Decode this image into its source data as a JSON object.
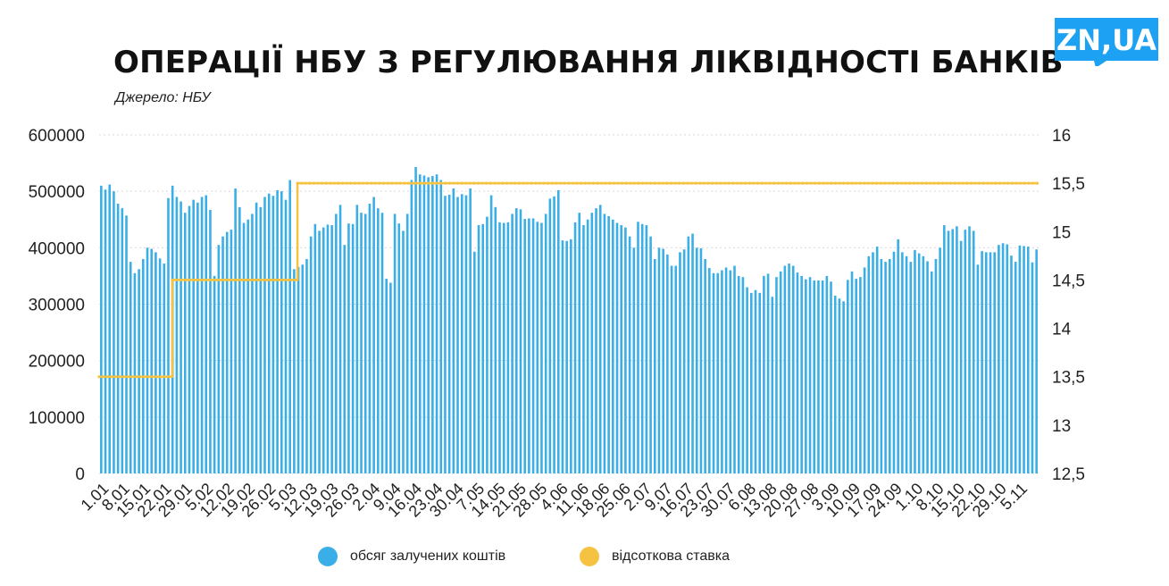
{
  "header": {
    "title": "ОПЕРАЦІЇ НБУ З РЕГУЛЮВАННЯ ЛІКВІДНОСТІ БАНКІВ",
    "source": "Джерело: НБУ",
    "logo_text": "ZN,UA"
  },
  "colors": {
    "bars": "#3aaee6",
    "rate": "#f5c242",
    "logo_bg": "#1da1f2",
    "grid": "#d9d9d9"
  },
  "legend": [
    {
      "label": "обсяг залучених коштів",
      "color": "#3aaee6"
    },
    {
      "label": "відсоткова ставка",
      "color": "#f5c242"
    }
  ],
  "chart_data": {
    "type": "bar",
    "grid": true,
    "legend_position": "bottom",
    "y_left": {
      "ticks": [
        "0",
        "100000",
        "200000",
        "300000",
        "400000",
        "500000",
        "600000"
      ],
      "lim": [
        0,
        600000
      ]
    },
    "y_right": {
      "ticks": [
        "12,5",
        "13",
        "13,5",
        "14",
        "14,5",
        "15",
        "15,5",
        "16"
      ],
      "lim": [
        12.5,
        16
      ]
    },
    "x_tick_labels": [
      "1.01",
      "8.01",
      "15.01",
      "22.01",
      "29.01",
      "5.02",
      "12.02",
      "19.02",
      "26.02",
      "5.03",
      "12.03",
      "19.03",
      "26.03",
      "2.04",
      "9.04",
      "16.04",
      "23.04",
      "30.04",
      "7.05",
      "14.05",
      "21.05",
      "28.05",
      "4.06",
      "11.06",
      "18.06",
      "25.06",
      "2.07",
      "9.07",
      "16.07",
      "23.07",
      "30.07",
      "6.08",
      "13.08",
      "20.08",
      "27.08",
      "3.09",
      "10.09",
      "17.09",
      "24.09",
      "1.10",
      "8.10",
      "15.10",
      "22.10",
      "29.10",
      "5.11"
    ],
    "series": [
      {
        "name": "обсяг залучених коштів",
        "type": "bar",
        "axis": "left",
        "values": [
          510000,
          503000,
          512000,
          500000,
          478000,
          470000,
          457000,
          375000,
          355000,
          362000,
          380000,
          400000,
          398000,
          392000,
          381000,
          372000,
          488000,
          510000,
          490000,
          482000,
          462000,
          474000,
          485000,
          480000,
          490000,
          493000,
          467000,
          350000,
          405000,
          420000,
          428000,
          432000,
          505000,
          472000,
          444000,
          450000,
          460000,
          480000,
          472000,
          490000,
          496000,
          492000,
          502000,
          500000,
          485000,
          520000,
          362000,
          366000,
          370000,
          380000,
          420000,
          442000,
          430000,
          436000,
          441000,
          440000,
          460000,
          476000,
          405000,
          443000,
          442000,
          476000,
          462000,
          460000,
          478000,
          490000,
          470000,
          462000,
          345000,
          338000,
          460000,
          443000,
          430000,
          460000,
          520000,
          543000,
          530000,
          528000,
          525000,
          527000,
          530000,
          520000,
          492000,
          494000,
          505000,
          490000,
          495000,
          493000,
          505000,
          393000,
          440000,
          442000,
          455000,
          493000,
          472000,
          445000,
          444000,
          445000,
          460000,
          470000,
          468000,
          451000,
          452000,
          452000,
          446000,
          444000,
          460000,
          487000,
          491000,
          502000,
          413000,
          412000,
          415000,
          445000,
          462000,
          440000,
          450000,
          462000,
          470000,
          476000,
          460000,
          456000,
          450000,
          444000,
          440000,
          436000,
          420000,
          400000,
          446000,
          442000,
          440000,
          420000,
          380000,
          400000,
          398000,
          388000,
          368000,
          368000,
          392000,
          397000,
          420000,
          425000,
          400000,
          399000,
          380000,
          364000,
          355000,
          355000,
          360000,
          365000,
          360000,
          368000,
          350000,
          348000,
          330000,
          320000,
          325000,
          320000,
          350000,
          354000,
          313000,
          348000,
          358000,
          368000,
          372000,
          368000,
          356000,
          350000,
          344000,
          348000,
          342000,
          342000,
          342000,
          350000,
          340000,
          315000,
          310000,
          305000,
          343000,
          358000,
          345000,
          348000,
          365000,
          385000,
          392000,
          402000,
          380000,
          375000,
          380000,
          393000,
          415000,
          392000,
          385000,
          375000,
          396000,
          390000,
          385000,
          376000,
          358000,
          380000,
          400000,
          440000,
          430000,
          433000,
          438000,
          412000,
          432000,
          438000,
          430000,
          370000,
          394000,
          392000,
          392000,
          392000,
          405000,
          408000,
          406000,
          386000,
          375000,
          404000,
          403000,
          402000,
          374000,
          397000
        ]
      },
      {
        "name": "відсоткова ставка",
        "type": "step-line",
        "axis": "right",
        "segments": [
          {
            "from": "1.01",
            "to": "22.01",
            "value": 13.5
          },
          {
            "from": "22.01",
            "to": "5.03",
            "value": 14.5
          },
          {
            "from": "5.03",
            "to": "5.11",
            "value": 15.5
          }
        ]
      }
    ]
  }
}
